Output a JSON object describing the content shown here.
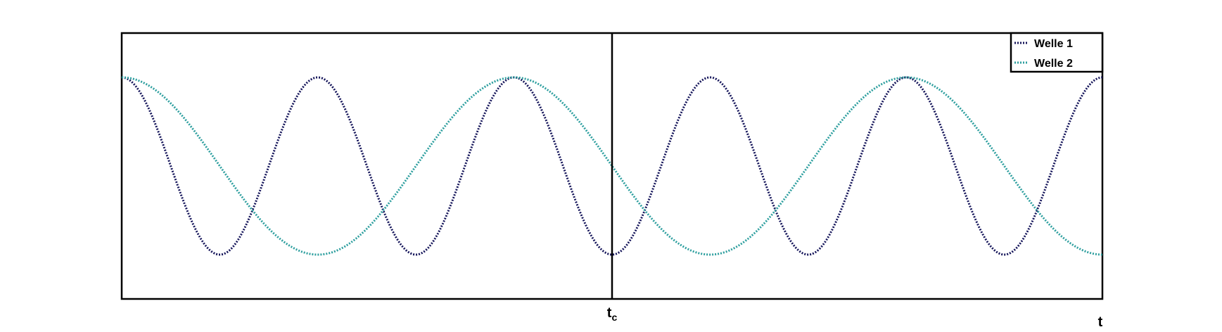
{
  "chart_data": {
    "type": "line",
    "title": "",
    "xlabel": "t",
    "ylabel": "",
    "marker_label": "t",
    "marker_label_sub": "c",
    "marker_x": 0.5,
    "xlim": [
      0,
      1
    ],
    "ylim": [
      -1.5,
      1.5
    ],
    "grid": false,
    "legend_position": "top-right",
    "series": [
      {
        "name": "Welle 1",
        "color": "#15155a",
        "dash": "dotted",
        "amplitude": 1,
        "cycles": 5,
        "phase": 0
      },
      {
        "name": "Welle 2",
        "color": "#2e9f9f",
        "dash": "dotted",
        "amplitude": 1,
        "cycles": 2.5,
        "phase": 0
      }
    ]
  }
}
